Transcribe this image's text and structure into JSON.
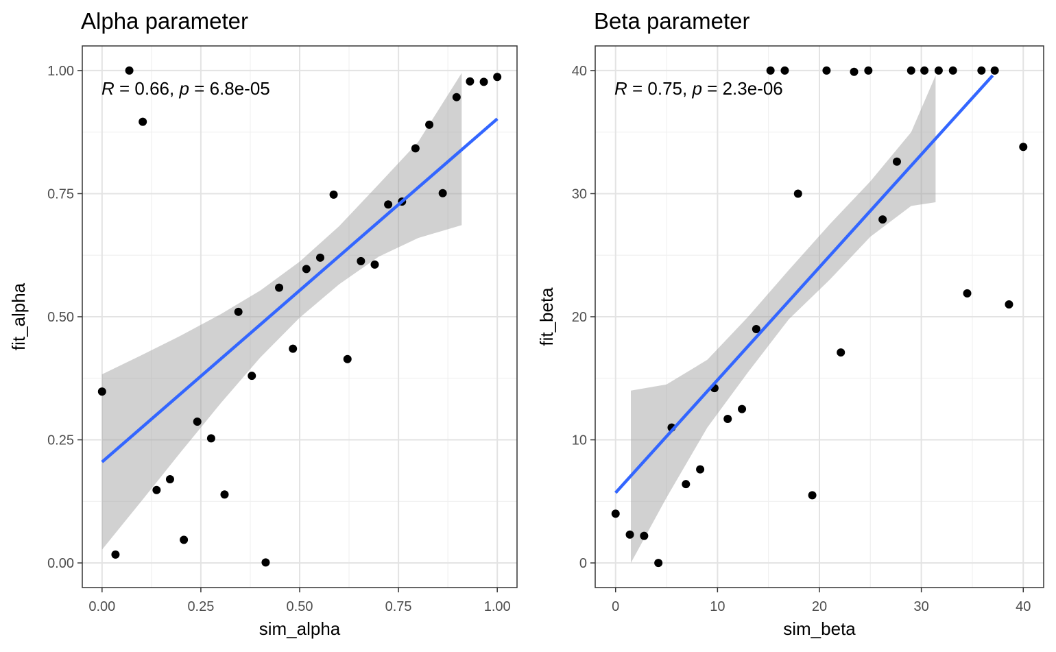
{
  "chart_data": [
    {
      "type": "scatter",
      "title": "Alpha parameter",
      "xlabel": "sim_alpha",
      "ylabel": "fit_alpha",
      "xlim": [
        -0.05,
        1.05
      ],
      "ylim": [
        -0.05,
        1.05
      ],
      "x_ticks": [
        0,
        0.25,
        0.5,
        0.75,
        1.0
      ],
      "x_tick_labels": [
        "0.00",
        "0.25",
        "0.50",
        "0.75",
        "1.00"
      ],
      "y_ticks": [
        0,
        0.25,
        0.5,
        0.75,
        1.0
      ],
      "y_tick_labels": [
        "0.00",
        "0.25",
        "0.50",
        "0.75",
        "1.00"
      ],
      "grid": true,
      "annotation": {
        "r_symbol": "R",
        "r_text": " = 0.66, ",
        "p_symbol": "p",
        "p_text": " = 6.8e-05"
      },
      "points": [
        {
          "x": 0.0,
          "y": 0.348
        },
        {
          "x": 0.034,
          "y": 0.017
        },
        {
          "x": 0.069,
          "y": 1.0
        },
        {
          "x": 0.103,
          "y": 0.896
        },
        {
          "x": 0.138,
          "y": 0.148
        },
        {
          "x": 0.172,
          "y": 0.17
        },
        {
          "x": 0.207,
          "y": 0.047
        },
        {
          "x": 0.241,
          "y": 0.287
        },
        {
          "x": 0.276,
          "y": 0.253
        },
        {
          "x": 0.31,
          "y": 0.139
        },
        {
          "x": 0.345,
          "y": 0.51
        },
        {
          "x": 0.379,
          "y": 0.38
        },
        {
          "x": 0.414,
          "y": 0.001
        },
        {
          "x": 0.448,
          "y": 0.559
        },
        {
          "x": 0.483,
          "y": 0.435
        },
        {
          "x": 0.517,
          "y": 0.597
        },
        {
          "x": 0.552,
          "y": 0.62
        },
        {
          "x": 0.586,
          "y": 0.748
        },
        {
          "x": 0.621,
          "y": 0.414
        },
        {
          "x": 0.655,
          "y": 0.613
        },
        {
          "x": 0.69,
          "y": 0.606
        },
        {
          "x": 0.724,
          "y": 0.728
        },
        {
          "x": 0.759,
          "y": 0.734
        },
        {
          "x": 0.793,
          "y": 0.842
        },
        {
          "x": 0.828,
          "y": 0.89
        },
        {
          "x": 0.862,
          "y": 0.751
        },
        {
          "x": 0.897,
          "y": 0.946
        },
        {
          "x": 0.931,
          "y": 0.978
        },
        {
          "x": 0.966,
          "y": 0.977
        },
        {
          "x": 1.0,
          "y": 0.987
        }
      ],
      "fit_line": {
        "x": [
          0.0,
          1.0
        ],
        "y": [
          0.205,
          0.902
        ],
        "color": "#3366FF"
      },
      "conf_band": {
        "x": [
          0.0,
          0.1,
          0.2,
          0.3,
          0.4,
          0.5,
          0.6,
          0.7,
          0.8,
          0.91
        ],
        "upper": [
          0.383,
          0.422,
          0.462,
          0.505,
          0.553,
          0.612,
          0.684,
          0.769,
          0.855,
          0.995
        ],
        "lower": [
          0.027,
          0.126,
          0.226,
          0.324,
          0.417,
          0.498,
          0.566,
          0.622,
          0.66,
          0.686
        ]
      }
    },
    {
      "type": "scatter",
      "title": "Beta parameter",
      "xlabel": "sim_beta",
      "ylabel": "fit_beta",
      "xlim": [
        -2,
        42
      ],
      "ylim": [
        -2,
        42
      ],
      "x_ticks": [
        0,
        10,
        20,
        30,
        40
      ],
      "x_tick_labels": [
        "0",
        "10",
        "20",
        "30",
        "40"
      ],
      "y_ticks": [
        0,
        10,
        20,
        30,
        40
      ],
      "y_tick_labels": [
        "0",
        "10",
        "20",
        "30",
        "40"
      ],
      "grid": true,
      "annotation": {
        "r_symbol": "R",
        "r_text": " = 0.75, ",
        "p_symbol": "p",
        "p_text": " = 2.3e-06"
      },
      "points": [
        {
          "x": 0.0,
          "y": 4.0
        },
        {
          "x": 1.4,
          "y": 2.3
        },
        {
          "x": 2.8,
          "y": 2.2
        },
        {
          "x": 4.2,
          "y": 0.0
        },
        {
          "x": 5.5,
          "y": 11.0
        },
        {
          "x": 6.9,
          "y": 6.4
        },
        {
          "x": 8.3,
          "y": 7.6
        },
        {
          "x": 9.7,
          "y": 14.2
        },
        {
          "x": 11.0,
          "y": 11.7
        },
        {
          "x": 12.4,
          "y": 12.5
        },
        {
          "x": 13.8,
          "y": 19.0
        },
        {
          "x": 15.2,
          "y": 40.0
        },
        {
          "x": 16.6,
          "y": 40.0
        },
        {
          "x": 17.9,
          "y": 30.0
        },
        {
          "x": 19.3,
          "y": 5.5
        },
        {
          "x": 20.7,
          "y": 40.0
        },
        {
          "x": 22.1,
          "y": 17.1
        },
        {
          "x": 23.4,
          "y": 39.9
        },
        {
          "x": 24.8,
          "y": 40.0
        },
        {
          "x": 26.2,
          "y": 27.9
        },
        {
          "x": 27.6,
          "y": 32.6
        },
        {
          "x": 29.0,
          "y": 40.0
        },
        {
          "x": 30.3,
          "y": 40.0
        },
        {
          "x": 31.7,
          "y": 40.0
        },
        {
          "x": 33.1,
          "y": 40.0
        },
        {
          "x": 34.5,
          "y": 21.9
        },
        {
          "x": 35.9,
          "y": 40.0
        },
        {
          "x": 37.2,
          "y": 40.0
        },
        {
          "x": 38.6,
          "y": 21.0
        },
        {
          "x": 40.0,
          "y": 33.8
        }
      ],
      "fit_line": {
        "x": [
          0.0,
          37.0
        ],
        "y": [
          5.7,
          39.6
        ],
        "color": "#3366FF"
      },
      "conf_band": {
        "x": [
          1.5,
          5,
          9,
          13,
          17,
          21,
          25,
          29,
          31.4
        ],
        "upper": [
          14.0,
          14.5,
          16.5,
          20.0,
          23.8,
          27.5,
          31.0,
          35.0,
          39.6
        ],
        "lower": [
          0.0,
          5.3,
          11.0,
          15.5,
          19.8,
          23.0,
          26.5,
          29.0,
          29.3
        ]
      }
    }
  ]
}
